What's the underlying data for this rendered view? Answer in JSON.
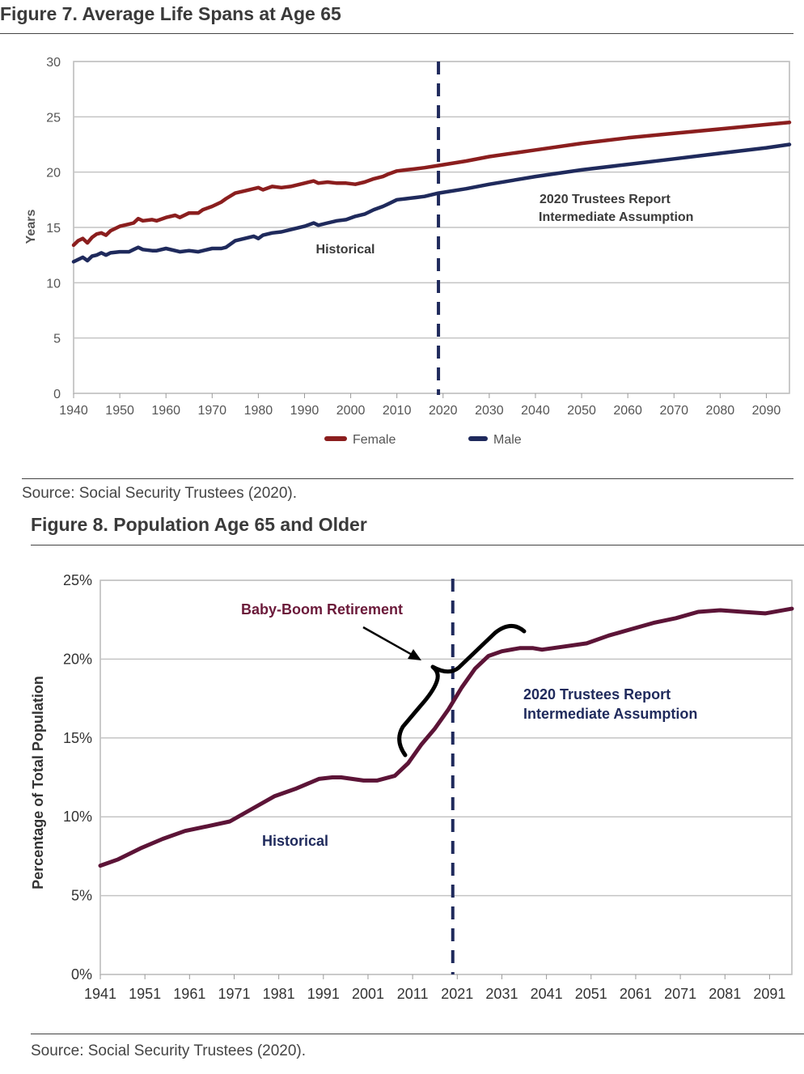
{
  "chart_data": [
    {
      "type": "line",
      "title": "Figure 7. Average Life Spans at Age 65",
      "ylabel": "Years",
      "xlim": [
        1940,
        2095
      ],
      "ylim": [
        0,
        30
      ],
      "x_ticks": [
        "1940",
        "1950",
        "1960",
        "1970",
        "1980",
        "1990",
        "2000",
        "2010",
        "2020",
        "2030",
        "2040",
        "2050",
        "2060",
        "2070",
        "2080",
        "2090"
      ],
      "y_ticks": [
        "0",
        "5",
        "10",
        "15",
        "20",
        "25",
        "30"
      ],
      "grid": true,
      "legend_position": "bottom-center",
      "divider_x": 2019,
      "annotations": [
        "Historical",
        "2020 Trustees Report",
        "Intermediate Assumption"
      ],
      "source": "Source: Social Security Trustees (2020).",
      "series": [
        {
          "name": "Female",
          "color": "#8b1e1e",
          "x": [
            1940,
            1941,
            1942,
            1943,
            1944,
            1945,
            1946,
            1947,
            1948,
            1950,
            1952,
            1953,
            1954,
            1955,
            1957,
            1958,
            1960,
            1962,
            1963,
            1965,
            1967,
            1968,
            1970,
            1972,
            1973,
            1975,
            1977,
            1980,
            1981,
            1983,
            1985,
            1987,
            1990,
            1992,
            1993,
            1995,
            1997,
            1999,
            2001,
            2003,
            2005,
            2007,
            2008,
            2010,
            2012,
            2014,
            2016,
            2019,
            2025,
            2030,
            2040,
            2050,
            2060,
            2070,
            2080,
            2090,
            2095
          ],
          "values": [
            13.4,
            13.8,
            14.0,
            13.6,
            14.1,
            14.4,
            14.5,
            14.3,
            14.7,
            15.1,
            15.3,
            15.4,
            15.8,
            15.6,
            15.7,
            15.6,
            15.9,
            16.1,
            15.9,
            16.3,
            16.3,
            16.6,
            16.9,
            17.3,
            17.6,
            18.1,
            18.3,
            18.6,
            18.4,
            18.7,
            18.6,
            18.7,
            19.0,
            19.2,
            19.0,
            19.1,
            19.0,
            19.0,
            18.9,
            19.1,
            19.4,
            19.6,
            19.8,
            20.1,
            20.2,
            20.3,
            20.4,
            20.6,
            21.0,
            21.4,
            22.0,
            22.6,
            23.1,
            23.5,
            23.9,
            24.3,
            24.5
          ]
        },
        {
          "name": "Male",
          "color": "#1f2a5c",
          "x": [
            1940,
            1941,
            1942,
            1943,
            1944,
            1945,
            1946,
            1947,
            1948,
            1950,
            1952,
            1953,
            1954,
            1955,
            1957,
            1958,
            1960,
            1962,
            1963,
            1965,
            1967,
            1968,
            1970,
            1972,
            1973,
            1975,
            1977,
            1979,
            1980,
            1981,
            1983,
            1985,
            1987,
            1990,
            1992,
            1993,
            1995,
            1997,
            1999,
            2001,
            2003,
            2005,
            2007,
            2008,
            2010,
            2012,
            2014,
            2016,
            2019,
            2025,
            2030,
            2040,
            2050,
            2060,
            2070,
            2080,
            2090,
            2095
          ],
          "values": [
            11.9,
            12.1,
            12.3,
            12.0,
            12.4,
            12.5,
            12.7,
            12.5,
            12.7,
            12.8,
            12.8,
            13.0,
            13.2,
            13.0,
            12.9,
            12.9,
            13.1,
            12.9,
            12.8,
            12.9,
            12.8,
            12.9,
            13.1,
            13.1,
            13.2,
            13.8,
            14.0,
            14.2,
            14.0,
            14.3,
            14.5,
            14.6,
            14.8,
            15.1,
            15.4,
            15.2,
            15.4,
            15.6,
            15.7,
            16.0,
            16.2,
            16.6,
            16.9,
            17.1,
            17.5,
            17.6,
            17.7,
            17.8,
            18.1,
            18.5,
            18.9,
            19.6,
            20.2,
            20.7,
            21.2,
            21.7,
            22.2,
            22.5
          ]
        }
      ]
    },
    {
      "type": "line",
      "title": "Figure 8. Population Age 65 and Older",
      "ylabel": "Percentage of Total Population",
      "xlim": [
        1941,
        2096
      ],
      "ylim": [
        0,
        25
      ],
      "x_ticks": [
        "1941",
        "1951",
        "1961",
        "1971",
        "1981",
        "1991",
        "2001",
        "2011",
        "2021",
        "2031",
        "2041",
        "2051",
        "2061",
        "2071",
        "2081",
        "2091"
      ],
      "y_ticks": [
        "0%",
        "5%",
        "10%",
        "15%",
        "20%",
        "25%"
      ],
      "grid": true,
      "divider_x": 2020,
      "annotations": [
        "Baby-Boom Retirement",
        "2020 Trustees Report",
        "Intermediate Assumption",
        "Historical"
      ],
      "source": "Source: Social Security Trustees (2020).",
      "series": [
        {
          "color": "#5c1437",
          "x": [
            1941,
            1945,
            1950,
            1955,
            1960,
            1965,
            1970,
            1975,
            1980,
            1985,
            1990,
            1993,
            1995,
            2000,
            2003,
            2007,
            2010,
            2013,
            2016,
            2019,
            2022,
            2025,
            2028,
            2031,
            2035,
            2038,
            2040,
            2045,
            2050,
            2055,
            2060,
            2065,
            2070,
            2075,
            2080,
            2085,
            2090,
            2096
          ],
          "values": [
            6.9,
            7.3,
            8.0,
            8.6,
            9.1,
            9.4,
            9.7,
            10.5,
            11.3,
            11.8,
            12.4,
            12.5,
            12.5,
            12.3,
            12.3,
            12.6,
            13.4,
            14.6,
            15.6,
            16.8,
            18.2,
            19.4,
            20.2,
            20.5,
            20.7,
            20.7,
            20.6,
            20.8,
            21.0,
            21.5,
            21.9,
            22.3,
            22.6,
            23.0,
            23.1,
            23.0,
            22.9,
            23.2
          ]
        }
      ]
    }
  ],
  "fig7_annotations": {
    "historical": "Historical",
    "trustees_line1": "2020 Trustees Report",
    "trustees_line2": "Intermediate Assumption"
  },
  "fig8_annotations": {
    "baby_boom": "Baby-Boom Retirement",
    "trustees_line1": "2020 Trustees Report",
    "trustees_line2": "Intermediate Assumption",
    "historical": "Historical"
  },
  "legend": {
    "female": "Female",
    "male": "Male"
  },
  "colors": {
    "female": "#8b1e1e",
    "male": "#1f2a5c",
    "population": "#5c1437",
    "divider": "#1f2a5c",
    "annotation_maroon": "#6b1a3a",
    "annotation_navy": "#1f2a5c"
  }
}
